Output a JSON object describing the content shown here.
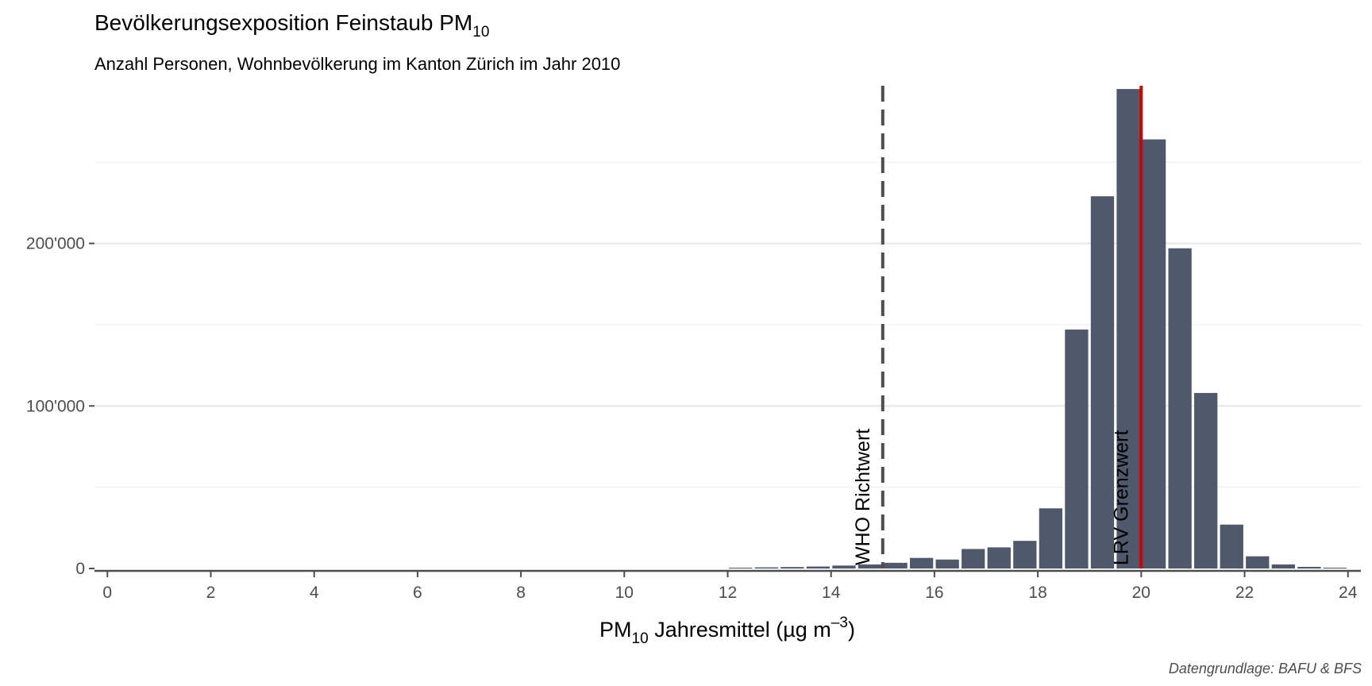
{
  "chart_data": {
    "type": "bar",
    "title": "Bevölkerungsexposition Feinstaub PM",
    "title_subscript": "10",
    "subtitle": "Anzahl Personen, Wohnbevölkerung im Kanton Zürich im Jahr 2010",
    "xlabel_prefix": "PM",
    "xlabel_subscript": "10",
    "xlabel_main": " Jahresmittel (µg m",
    "xlabel_superscript": "–3",
    "xlabel_suffix": ")",
    "ylabel": "",
    "caption": "Datengrundlage: BAFU & BFS",
    "xlim": [
      -0.25,
      24.25
    ],
    "ylim": [
      0,
      297000
    ],
    "x_ticks": [
      0,
      2,
      4,
      6,
      8,
      10,
      12,
      14,
      16,
      18,
      20,
      22,
      24
    ],
    "y_ticks": [
      0,
      100000,
      200000
    ],
    "y_tick_labels": [
      "0",
      "100'000",
      "200'000"
    ],
    "y_minor_ticks": [
      50000,
      150000,
      250000
    ],
    "bar_width": 0.45,
    "bar_color": "#4f596b",
    "x": [
      12.25,
      12.75,
      13.25,
      13.75,
      14.25,
      14.75,
      15.25,
      15.75,
      16.25,
      16.75,
      17.25,
      17.75,
      18.25,
      18.75,
      19.25,
      19.75,
      20.25,
      20.75,
      21.25,
      21.75,
      22.25,
      22.75,
      23.25,
      23.75
    ],
    "values": [
      500,
      700,
      900,
      1200,
      1800,
      2500,
      3500,
      6500,
      5500,
      12000,
      13000,
      17000,
      37000,
      147000,
      229000,
      295000,
      264000,
      197000,
      108000,
      27000,
      7500,
      2500,
      1000,
      500
    ],
    "reference_lines": [
      {
        "x": 15,
        "label": "WHO Richtwert",
        "color": "#4d4d4d",
        "style": "dashed"
      },
      {
        "x": 20,
        "label": "LRV Grenzwert",
        "color": "#cc0000",
        "style": "solid"
      }
    ],
    "grid": "horizontal",
    "legend": "none"
  }
}
